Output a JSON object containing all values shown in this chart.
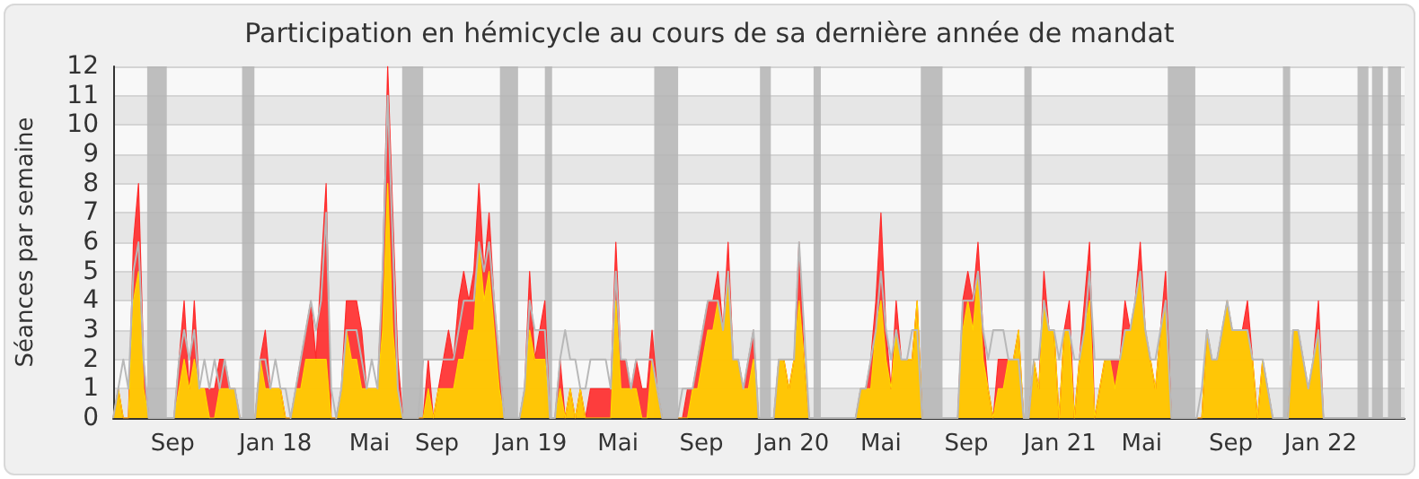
{
  "chart_data": {
    "type": "area",
    "title": "Participation en hémicycle au cours de sa dernière année de mandat",
    "ylabel": "Séances par semaine",
    "x": [
      "2017-06-11",
      "2017-06-18",
      "2017-06-25",
      "2017-07-02",
      "2017-07-09",
      "2017-07-16",
      "2017-07-23",
      "2017-07-30",
      "2017-08-06",
      "2017-08-13",
      "2017-08-20",
      "2017-08-27",
      "2017-09-03",
      "2017-09-10",
      "2017-09-17",
      "2017-09-24",
      "2017-10-01",
      "2017-10-08",
      "2017-10-15",
      "2017-10-22",
      "2017-10-29",
      "2017-11-05",
      "2017-11-12",
      "2017-11-19",
      "2017-11-26",
      "2017-12-03",
      "2017-12-10",
      "2017-12-17",
      "2017-12-24",
      "2017-12-31",
      "2018-01-07",
      "2018-01-14",
      "2018-01-21",
      "2018-01-28",
      "2018-02-04",
      "2018-02-11",
      "2018-02-18",
      "2018-02-25",
      "2018-03-04",
      "2018-03-11",
      "2018-03-18",
      "2018-03-25",
      "2018-04-01",
      "2018-04-08",
      "2018-04-15",
      "2018-04-22",
      "2018-04-29",
      "2018-05-06",
      "2018-05-13",
      "2018-05-20",
      "2018-05-27",
      "2018-06-03",
      "2018-06-11",
      "2018-06-18",
      "2018-06-25",
      "2018-07-02",
      "2018-07-09",
      "2018-07-16",
      "2018-07-23",
      "2018-07-30",
      "2018-08-06",
      "2018-08-13",
      "2018-08-20",
      "2018-08-27",
      "2018-09-03",
      "2018-09-10",
      "2018-09-17",
      "2018-09-24",
      "2018-10-01",
      "2018-10-08",
      "2018-10-15",
      "2018-10-22",
      "2018-10-29",
      "2018-11-05",
      "2018-11-12",
      "2018-11-19",
      "2018-11-26",
      "2018-12-03",
      "2018-12-10",
      "2018-12-17",
      "2018-12-24",
      "2018-12-31",
      "2019-01-07",
      "2019-01-14",
      "2019-01-21",
      "2019-01-28",
      "2019-02-04",
      "2019-02-11",
      "2019-02-18",
      "2019-02-25",
      "2019-03-04",
      "2019-03-11",
      "2019-03-18",
      "2019-03-25",
      "2019-04-01",
      "2019-04-08",
      "2019-04-15",
      "2019-04-22",
      "2019-04-29",
      "2019-05-06",
      "2019-05-13",
      "2019-05-20",
      "2019-05-27",
      "2019-06-03",
      "2019-06-11",
      "2019-06-18",
      "2019-06-25",
      "2019-07-02",
      "2019-07-09",
      "2019-07-16",
      "2019-07-23",
      "2019-07-30",
      "2019-08-06",
      "2019-08-13",
      "2019-08-20",
      "2019-08-27",
      "2019-09-03",
      "2019-09-10",
      "2019-09-17",
      "2019-09-24",
      "2019-10-01",
      "2019-10-08",
      "2019-10-15",
      "2019-10-22",
      "2019-10-29",
      "2019-11-05",
      "2019-11-12",
      "2019-11-19",
      "2019-11-26",
      "2019-12-03",
      "2019-12-10",
      "2019-12-17",
      "2019-12-24",
      "2019-12-31",
      "2020-01-07",
      "2020-01-14",
      "2020-01-21",
      "2020-01-28",
      "2020-02-04",
      "2020-02-11",
      "2020-02-18",
      "2020-02-25",
      "2020-03-04",
      "2020-03-11",
      "2020-03-18",
      "2020-03-25",
      "2020-04-01",
      "2020-04-08",
      "2020-04-15",
      "2020-04-22",
      "2020-04-29",
      "2020-05-06",
      "2020-05-13",
      "2020-05-20",
      "2020-05-27",
      "2020-06-03",
      "2020-06-11",
      "2020-06-18",
      "2020-06-25",
      "2020-07-02",
      "2020-07-09",
      "2020-07-16",
      "2020-07-23",
      "2020-07-30",
      "2020-08-06",
      "2020-08-13",
      "2020-08-20",
      "2020-08-27",
      "2020-09-03",
      "2020-09-10",
      "2020-09-17",
      "2020-09-24",
      "2020-10-01",
      "2020-10-08",
      "2020-10-15",
      "2020-10-22",
      "2020-10-29",
      "2020-11-05",
      "2020-11-12",
      "2020-11-19",
      "2020-11-26",
      "2020-12-03",
      "2020-12-10",
      "2020-12-17",
      "2020-12-24",
      "2020-12-31",
      "2021-01-07",
      "2021-01-14",
      "2021-01-21",
      "2021-01-28",
      "2021-02-04",
      "2021-02-11",
      "2021-02-18",
      "2021-02-25",
      "2021-03-04",
      "2021-03-11",
      "2021-03-18",
      "2021-03-25",
      "2021-04-01",
      "2021-04-08",
      "2021-04-15",
      "2021-04-22",
      "2021-04-29",
      "2021-05-06",
      "2021-05-13",
      "2021-05-20",
      "2021-05-27",
      "2021-06-03",
      "2021-06-11",
      "2021-06-18",
      "2021-06-25",
      "2021-07-02",
      "2021-07-09",
      "2021-07-16",
      "2021-07-23",
      "2021-07-30",
      "2021-08-06",
      "2021-08-13",
      "2021-08-20",
      "2021-08-27",
      "2021-09-03",
      "2021-09-10",
      "2021-09-17",
      "2021-09-24",
      "2021-10-01",
      "2021-10-08",
      "2021-10-15",
      "2021-10-22",
      "2021-10-29",
      "2021-11-05",
      "2021-11-12",
      "2021-11-19",
      "2021-11-26",
      "2021-12-03",
      "2021-12-10",
      "2021-12-17",
      "2021-12-24",
      "2021-12-31",
      "2022-01-07",
      "2022-01-14",
      "2022-01-21",
      "2022-01-28",
      "2022-02-04",
      "2022-02-11",
      "2022-02-18",
      "2022-02-25",
      "2022-03-04",
      "2022-03-11",
      "2022-03-18",
      "2022-03-25",
      "2022-04-01",
      "2022-04-08",
      "2022-04-15",
      "2022-04-22",
      "2022-04-29"
    ],
    "xlim": [
      "2017-06-11",
      "2022-04-29"
    ],
    "xticks": [
      {
        "value": "2017-09-01",
        "label": "Sep"
      },
      {
        "value": "2018-01-21",
        "label": "Jan 18"
      },
      {
        "value": "2018-05-31",
        "label": "Mai"
      },
      {
        "value": "2018-09-01",
        "label": "Sep"
      },
      {
        "value": "2019-01-08",
        "label": "Jan 19"
      },
      {
        "value": "2019-05-09",
        "label": "Mai"
      },
      {
        "value": "2019-09-01",
        "label": "Sep"
      },
      {
        "value": "2020-01-05",
        "label": "Jan 20"
      },
      {
        "value": "2020-05-06",
        "label": "Mai"
      },
      {
        "value": "2020-09-01",
        "label": "Sep"
      },
      {
        "value": "2021-01-08",
        "label": "Jan 21"
      },
      {
        "value": "2021-05-01",
        "label": "Mai"
      },
      {
        "value": "2021-09-01",
        "label": "Sep"
      },
      {
        "value": "2022-01-03",
        "label": "Jan 22"
      }
    ],
    "ylim": [
      0,
      12
    ],
    "yticks": [
      0,
      1,
      2,
      3,
      4,
      5,
      6,
      7,
      8,
      9,
      10,
      11,
      12
    ],
    "grid": "y",
    "marker": "none",
    "series": [
      {
        "type": "area",
        "color": "#ff2a2a",
        "values": [
          0,
          1,
          0,
          0,
          6,
          8,
          2,
          0,
          0,
          0,
          0,
          0,
          0,
          2,
          4,
          1,
          4,
          1,
          1,
          1,
          1,
          2,
          2,
          1,
          1,
          0,
          0,
          0,
          0,
          2,
          3,
          1,
          1,
          1,
          0,
          0,
          1,
          2,
          3,
          4,
          2,
          5,
          8,
          0,
          0,
          1,
          4,
          4,
          4,
          3,
          1,
          1,
          1,
          5,
          12,
          7,
          2,
          0,
          0,
          0,
          0,
          0,
          2,
          0,
          1,
          2,
          3,
          2,
          4,
          5,
          4,
          5,
          8,
          5,
          7,
          4,
          2,
          0,
          0,
          0,
          0,
          1,
          5,
          2,
          3,
          4,
          0,
          0,
          2,
          0,
          1,
          0,
          1,
          0,
          1,
          1,
          1,
          1,
          1,
          6,
          2,
          2,
          1,
          2,
          1,
          1,
          3,
          1,
          0,
          0,
          0,
          0,
          0,
          1,
          1,
          2,
          3,
          4,
          4,
          5,
          3,
          6,
          2,
          2,
          1,
          2,
          3,
          0,
          0,
          0,
          0,
          2,
          2,
          1,
          2,
          6,
          2,
          0,
          0,
          0,
          0,
          0,
          0,
          0,
          0,
          0,
          0,
          1,
          1,
          2,
          4,
          7,
          3,
          1,
          4,
          2,
          2,
          2,
          4,
          0,
          0,
          0,
          0,
          0,
          0,
          0,
          0,
          4,
          5,
          4,
          6,
          3,
          1,
          0,
          2,
          2,
          2,
          2,
          3,
          0,
          0,
          2,
          1,
          5,
          3,
          3,
          0,
          3,
          4,
          0,
          2,
          4,
          6,
          0,
          1,
          2,
          2,
          2,
          2,
          4,
          3,
          4,
          6,
          3,
          2,
          1,
          3,
          5,
          0,
          0,
          0,
          0,
          0,
          0,
          0,
          3,
          2,
          2,
          3,
          4,
          3,
          3,
          3,
          4,
          2,
          0,
          2,
          1,
          0,
          0,
          0,
          0,
          3,
          3,
          2,
          1,
          2,
          4,
          0,
          0,
          0,
          0,
          0,
          0,
          0,
          0,
          0,
          0,
          0,
          0,
          0,
          0,
          0,
          0,
          0
        ]
      },
      {
        "type": "area",
        "color": "#ffd500",
        "values": [
          0,
          1,
          0,
          0,
          4,
          5,
          1,
          0,
          0,
          0,
          0,
          0,
          0,
          1,
          2,
          1,
          2,
          1,
          1,
          0,
          0,
          1,
          1,
          1,
          1,
          0,
          0,
          0,
          0,
          2,
          1,
          1,
          1,
          1,
          0,
          0,
          1,
          1,
          2,
          2,
          2,
          2,
          2,
          0,
          0,
          1,
          3,
          2,
          2,
          1,
          1,
          1,
          1,
          3,
          8,
          3,
          1,
          0,
          0,
          0,
          0,
          0,
          1,
          0,
          1,
          1,
          1,
          1,
          2,
          2,
          3,
          3,
          6,
          4,
          5,
          3,
          1,
          0,
          0,
          0,
          0,
          1,
          3,
          2,
          2,
          2,
          0,
          0,
          1,
          0,
          1,
          0,
          1,
          0,
          0,
          0,
          0,
          0,
          0,
          4,
          1,
          1,
          1,
          1,
          0,
          0,
          2,
          1,
          0,
          0,
          0,
          0,
          0,
          0,
          1,
          1,
          2,
          3,
          3,
          4,
          3,
          5,
          2,
          2,
          1,
          1,
          2,
          0,
          0,
          0,
          0,
          2,
          2,
          1,
          2,
          4,
          2,
          0,
          0,
          0,
          0,
          0,
          0,
          0,
          0,
          0,
          0,
          1,
          1,
          1,
          3,
          4,
          2,
          1,
          3,
          2,
          2,
          2,
          4,
          0,
          0,
          0,
          0,
          0,
          0,
          0,
          0,
          3,
          4,
          3,
          5,
          2,
          1,
          0,
          1,
          1,
          2,
          2,
          3,
          0,
          0,
          2,
          1,
          4,
          3,
          3,
          0,
          3,
          3,
          0,
          2,
          3,
          4,
          0,
          1,
          2,
          2,
          1,
          2,
          3,
          3,
          4,
          5,
          3,
          2,
          1,
          3,
          4,
          0,
          0,
          0,
          0,
          0,
          0,
          0,
          3,
          2,
          2,
          3,
          4,
          3,
          3,
          3,
          3,
          2,
          0,
          2,
          1,
          0,
          0,
          0,
          0,
          3,
          3,
          2,
          1,
          2,
          3,
          0,
          0,
          0,
          0,
          0,
          0,
          0,
          0,
          0,
          0,
          0,
          0,
          0,
          0,
          0,
          0,
          0
        ]
      },
      {
        "type": "line",
        "color": "#b8b8b8",
        "values": [
          0,
          1,
          2,
          1,
          5,
          6,
          2,
          0,
          0,
          0,
          0,
          0,
          0,
          2,
          3,
          2,
          3,
          1,
          2,
          1,
          2,
          1,
          2,
          1,
          1,
          0,
          0,
          0,
          0,
          2,
          2,
          1,
          2,
          1,
          1,
          0,
          1,
          2,
          3,
          4,
          3,
          4,
          7,
          1,
          0,
          1,
          3,
          3,
          3,
          2,
          1,
          2,
          1,
          5,
          11,
          6,
          1,
          0,
          0,
          0,
          0,
          2,
          2,
          2,
          2,
          2,
          2,
          2,
          3,
          4,
          4,
          4,
          6,
          5,
          6,
          4,
          2,
          0,
          0,
          0,
          0,
          1,
          4,
          3,
          3,
          3,
          0,
          0,
          2,
          3,
          2,
          2,
          1,
          1,
          2,
          2,
          2,
          2,
          1,
          5,
          2,
          2,
          1,
          2,
          2,
          2,
          2,
          1,
          0,
          0,
          0,
          0,
          1,
          1,
          1,
          2,
          3,
          4,
          4,
          4,
          3,
          5,
          2,
          2,
          1,
          2,
          3,
          0,
          0,
          0,
          0,
          2,
          2,
          2,
          2,
          6,
          3,
          0,
          0,
          0,
          0,
          0,
          0,
          0,
          0,
          0,
          0,
          1,
          1,
          2,
          3,
          5,
          3,
          2,
          3,
          2,
          2,
          3,
          3,
          0,
          0,
          0,
          0,
          0,
          0,
          0,
          0,
          4,
          4,
          4,
          5,
          3,
          2,
          3,
          3,
          3,
          2,
          2,
          2,
          0,
          0,
          2,
          2,
          4,
          3,
          3,
          2,
          3,
          3,
          2,
          2,
          3,
          5,
          2,
          2,
          2,
          2,
          2,
          2,
          3,
          3,
          4,
          5,
          3,
          2,
          2,
          3,
          4,
          0,
          0,
          0,
          0,
          0,
          0,
          1,
          3,
          2,
          2,
          3,
          4,
          3,
          3,
          3,
          3,
          2,
          2,
          2,
          1,
          0,
          0,
          0,
          0,
          3,
          3,
          2,
          1,
          2,
          3,
          0,
          0,
          0,
          0,
          0,
          0,
          0,
          0,
          0,
          0,
          0,
          0,
          0,
          0,
          0,
          0,
          0
        ]
      }
    ],
    "bands": [
      {
        "axis": "x",
        "from": "2017-07-28",
        "to": "2017-08-24",
        "color": "#b4b4b4"
      },
      {
        "axis": "x",
        "from": "2017-12-06",
        "to": "2017-12-23",
        "color": "#b4b4b4"
      },
      {
        "axis": "x",
        "from": "2018-07-15",
        "to": "2018-08-13",
        "color": "#b4b4b4"
      },
      {
        "axis": "x",
        "from": "2018-11-27",
        "to": "2018-12-22",
        "color": "#b4b4b4"
      },
      {
        "axis": "x",
        "from": "2019-01-28",
        "to": "2019-02-07",
        "color": "#b4b4b4"
      },
      {
        "axis": "x",
        "from": "2019-06-28",
        "to": "2019-07-31",
        "color": "#b4b4b4"
      },
      {
        "axis": "x",
        "from": "2019-11-21",
        "to": "2019-12-06",
        "color": "#b4b4b4"
      },
      {
        "axis": "x",
        "from": "2020-02-03",
        "to": "2020-02-13",
        "color": "#b4b4b4"
      },
      {
        "axis": "x",
        "from": "2020-06-30",
        "to": "2020-07-30",
        "color": "#b4b4b4"
      },
      {
        "axis": "x",
        "from": "2020-11-20",
        "to": "2020-11-30",
        "color": "#b4b4b4"
      },
      {
        "axis": "x",
        "from": "2021-06-06",
        "to": "2021-07-14",
        "color": "#b4b4b4"
      },
      {
        "axis": "x",
        "from": "2021-11-12",
        "to": "2021-11-22",
        "color": "#b4b4b4"
      },
      {
        "axis": "x",
        "from": "2022-02-23",
        "to": "2022-03-10",
        "color": "#b4b4b4"
      },
      {
        "axis": "x",
        "from": "2022-03-15",
        "to": "2022-03-30",
        "color": "#b4b4b4"
      },
      {
        "axis": "x",
        "from": "2022-04-06",
        "to": "2022-04-24",
        "color": "#b4b4b4"
      }
    ]
  }
}
